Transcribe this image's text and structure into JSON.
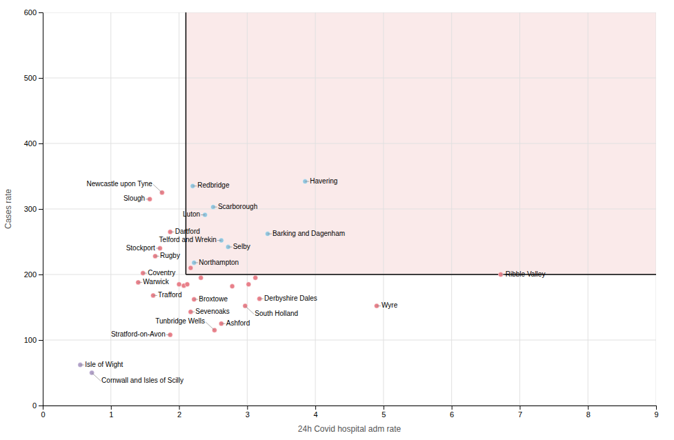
{
  "chart_data": {
    "type": "scatter",
    "xlabel": "24h Covid hospital adm rate",
    "ylabel": "Cases rate",
    "xlim": [
      0,
      9
    ],
    "ylim": [
      0,
      600
    ],
    "xticks": [
      0,
      1,
      2,
      3,
      4,
      5,
      6,
      7,
      8,
      9
    ],
    "yticks": [
      0,
      100,
      200,
      300,
      400,
      500,
      600
    ],
    "grid": true,
    "region": {
      "x": 2.1,
      "y": 200,
      "color": "#FAEAEA"
    },
    "series": [
      {
        "color": "#92C5DE",
        "x": [
          3.85,
          2.2,
          2.5,
          2.38,
          3.3,
          2.62,
          2.72,
          2.22
        ],
        "values": [
          342,
          335,
          303,
          291,
          262,
          252,
          242,
          218
        ],
        "labels": [
          "Havering",
          "Redbridge",
          "Scarborough",
          "Luton",
          "Barking and Dagenham",
          "Telford and Wrekin",
          "Selby",
          "Northampton"
        ]
      },
      {
        "color": "#E8808A",
        "x": [
          1.75,
          1.57,
          1.87,
          1.72,
          1.65,
          1.47,
          1.4,
          1.62,
          2.0,
          2.07,
          2.12,
          2.17,
          2.32,
          2.78,
          3.02,
          3.12,
          2.22,
          3.18,
          2.97,
          2.17,
          2.62,
          2.52,
          1.87,
          4.9,
          6.72
        ],
        "values": [
          325,
          315,
          265,
          240,
          228,
          202,
          188,
          168,
          185,
          183,
          185,
          210,
          195,
          182,
          185,
          195,
          162,
          163,
          152,
          143,
          125,
          115,
          108,
          152,
          200
        ],
        "labels": [
          "Newcastle upon Tyne",
          "Slough",
          "Dartford",
          "Stockport",
          "Rugby",
          "Coventry",
          "Warwick",
          "Trafford",
          null,
          null,
          null,
          null,
          null,
          null,
          null,
          null,
          "Broxtowe",
          "Derbyshire Dales",
          "South Holland",
          "Sevenoaks",
          "Ashford",
          "Tunbridge Wells",
          "Stratford-on-Avon",
          "Wyre",
          "Ribble Valley"
        ]
      },
      {
        "color": "#B0A0C8",
        "x": [
          0.55,
          0.72
        ],
        "values": [
          62,
          50
        ],
        "labels": [
          "Isle of Wight",
          "Cornwall and Isles of Scilly"
        ]
      }
    ]
  }
}
